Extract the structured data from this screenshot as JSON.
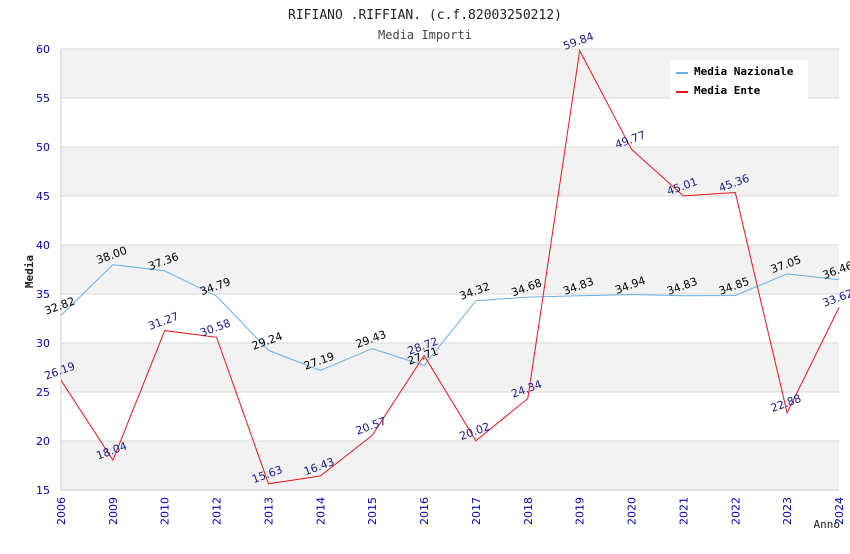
{
  "chart_data": {
    "type": "line",
    "title": "RIFIANO .RIFFIAN. (c.f.82003250212)",
    "subtitle": "Media Importi",
    "xlabel": "Anno",
    "ylabel": "Media",
    "ylim": [
      15,
      60
    ],
    "yticks": [
      15,
      20,
      25,
      30,
      35,
      40,
      45,
      50,
      55,
      60
    ],
    "categories": [
      "2006",
      "2009",
      "2010",
      "2012",
      "2013",
      "2014",
      "2015",
      "2016",
      "2017",
      "2018",
      "2019",
      "2020",
      "2021",
      "2022",
      "2023",
      "2024"
    ],
    "series": [
      {
        "name": "Media Nazionale",
        "color": "#6aaee6",
        "label_color": "#000000",
        "values": [
          32.82,
          38.0,
          37.36,
          34.79,
          29.24,
          27.19,
          29.43,
          27.71,
          34.32,
          34.68,
          34.83,
          34.94,
          34.83,
          34.85,
          37.05,
          36.46
        ],
        "labels": [
          "32.82",
          "38.00",
          "37.36",
          "34.79",
          "29.24",
          "27.19",
          "29.43",
          "27.71",
          "34.32",
          "34.68",
          "34.83",
          "34.94",
          "34.83",
          "34.85",
          "37.05",
          "36.46"
        ]
      },
      {
        "name": "Media Ente",
        "color": "#e8171d",
        "label_color": "#1a1a8c",
        "values": [
          26.19,
          18.04,
          31.27,
          30.58,
          15.63,
          16.43,
          20.57,
          28.72,
          20.02,
          24.34,
          59.84,
          49.77,
          45.01,
          45.36,
          22.88,
          33.62
        ],
        "labels": [
          "26.19",
          "18.04",
          "31.27",
          "30.58",
          "15.63",
          "16.43",
          "20.57",
          "28.72",
          "20.02",
          "24.34",
          "59.84",
          "49.77",
          "45.01",
          "45.36",
          "22.88",
          "33.62"
        ]
      }
    ],
    "legend_position": "top-right",
    "grid": true,
    "colors": {
      "band": "#f2f2f2",
      "gridline": "#d9d9d9",
      "axis_text": "#0000b4",
      "title_text": "#222222",
      "subtitle_text": "#444444"
    }
  }
}
